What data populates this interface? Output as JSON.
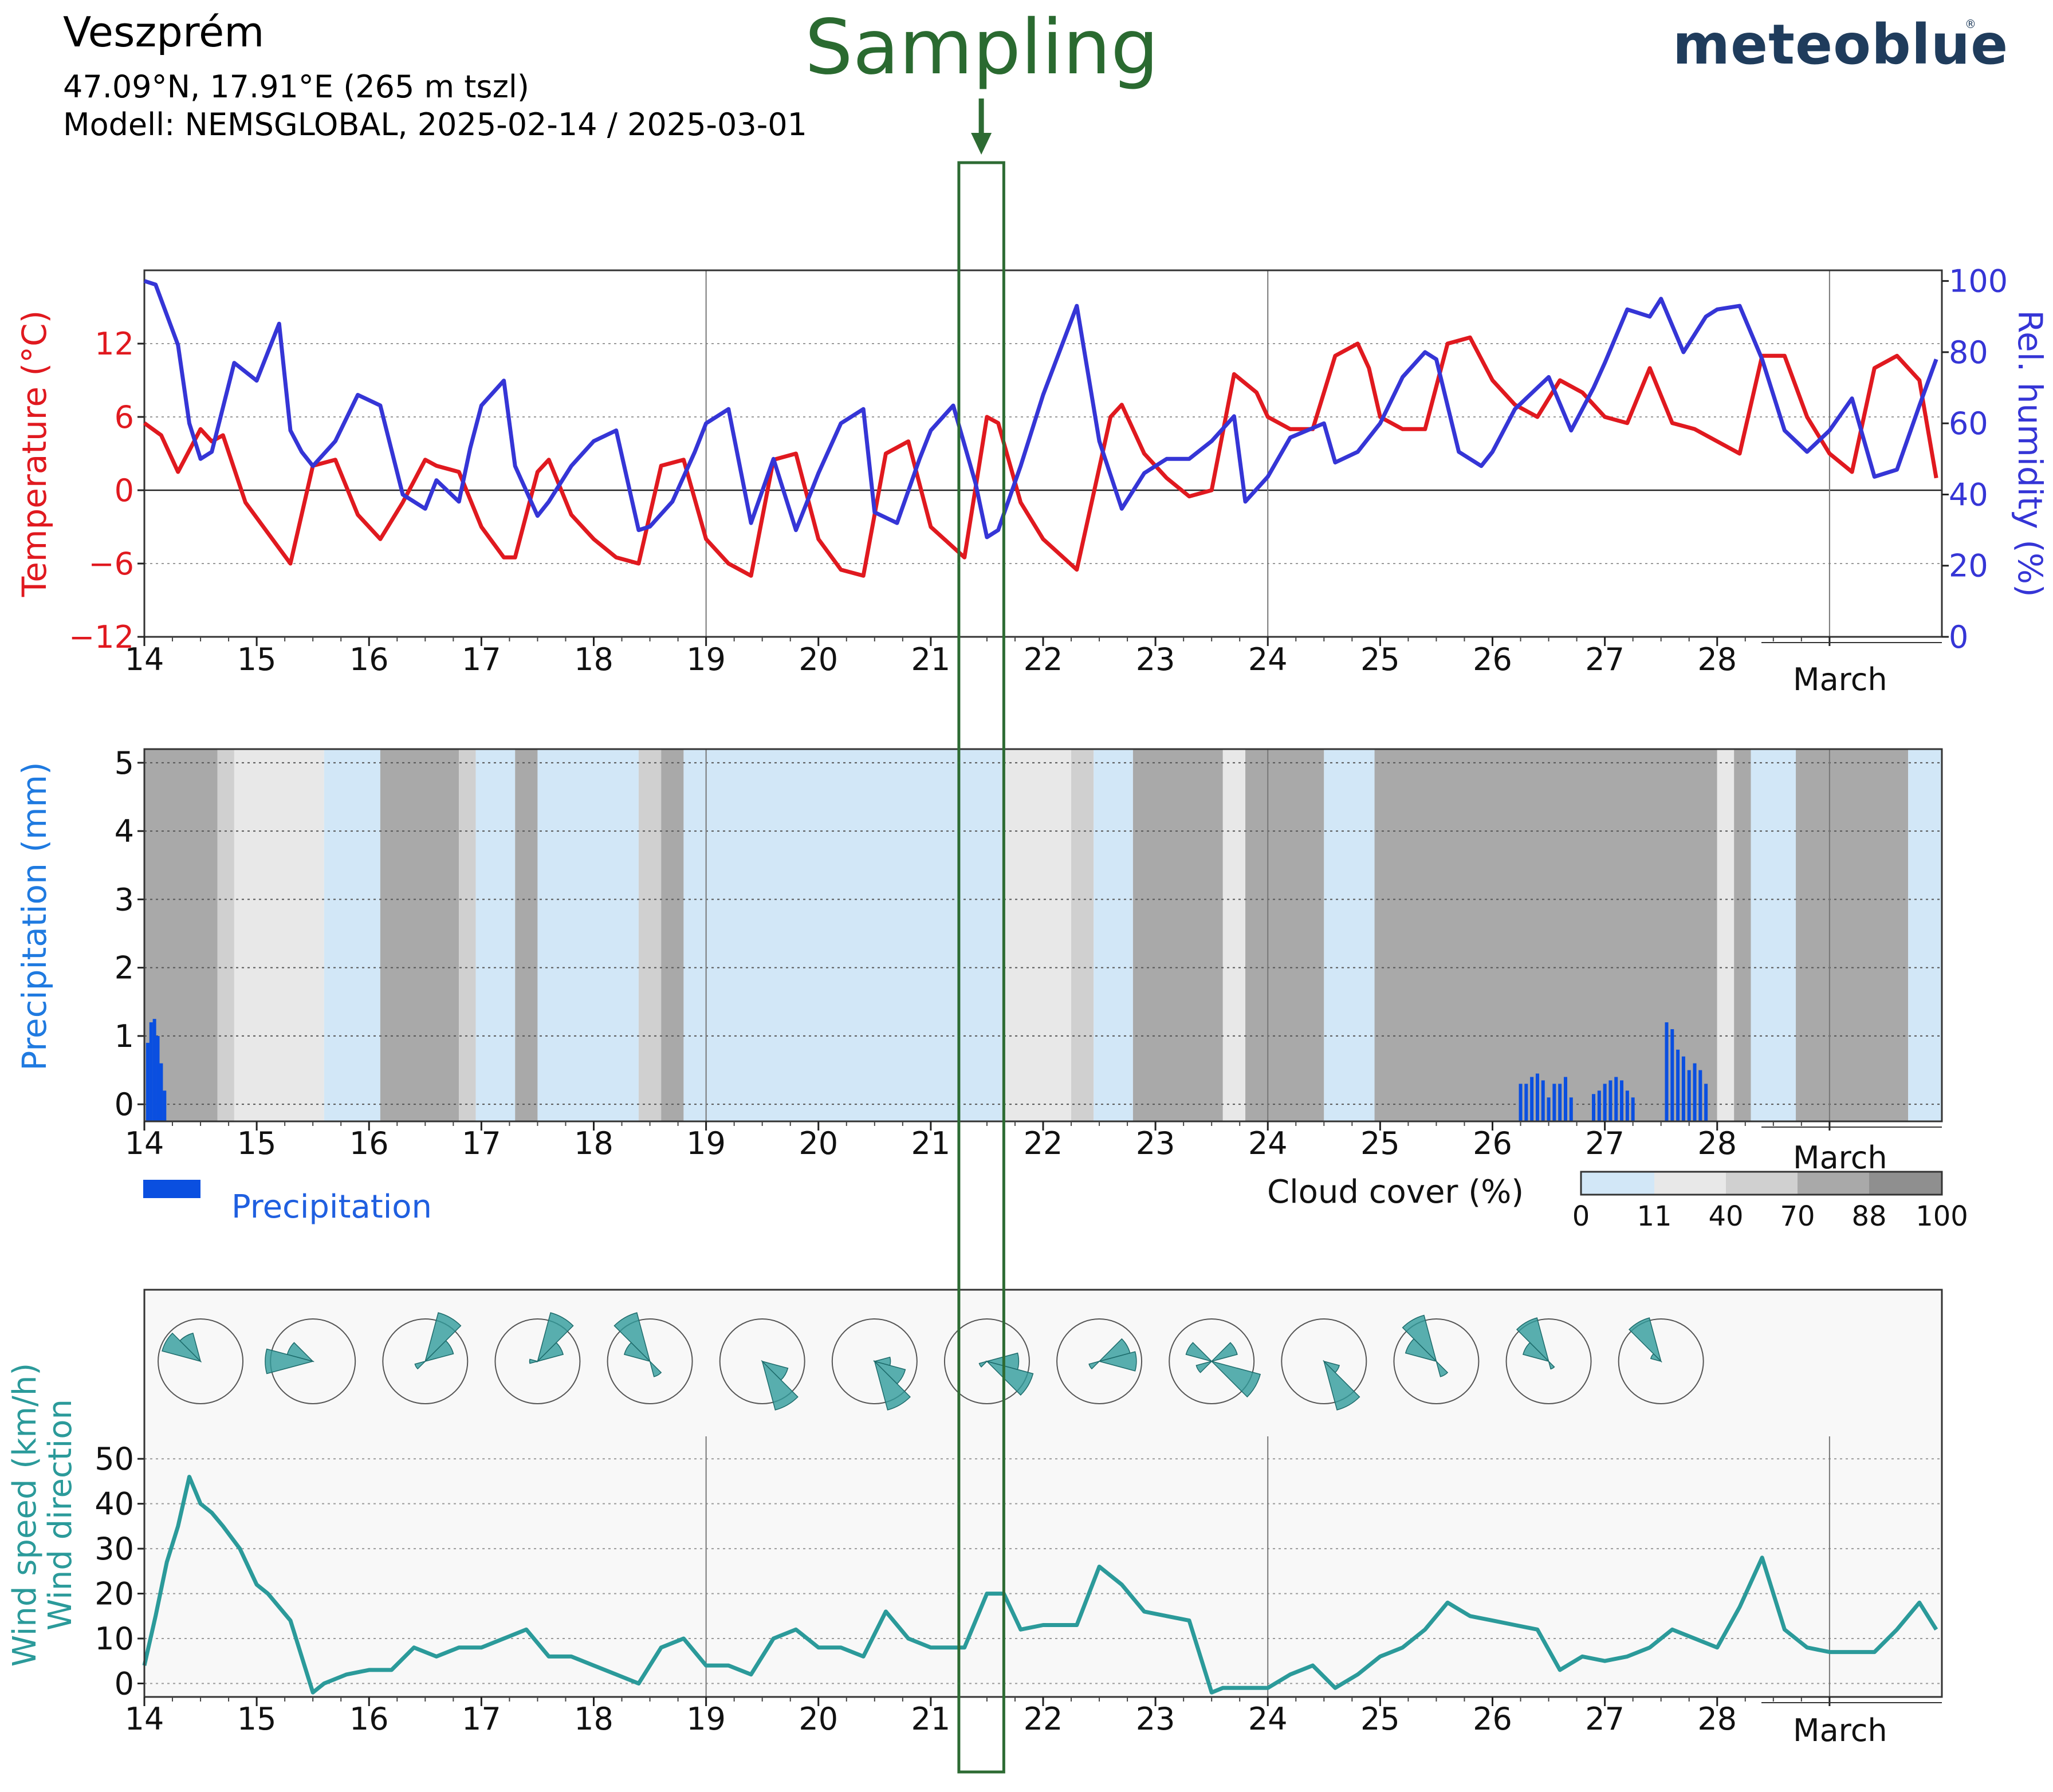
{
  "header": {
    "city": "Veszprém",
    "coords": "47.09°N, 17.91°E (265 m tszl)",
    "model": "Modell: NEMSGLOBAL, 2025-02-14 / 2025-03-01",
    "brand": "meteoblue",
    "brand_mark": "®"
  },
  "annotation": {
    "label": "Sampling",
    "arrow_icon": "down-arrow-icon",
    "day_range": [
      21.25,
      21.65
    ],
    "color": "#2d6b33"
  },
  "x_axis": {
    "ticks": [
      "14",
      "15",
      "16",
      "17",
      "18",
      "19",
      "20",
      "21",
      "22",
      "23",
      "24",
      "25",
      "26",
      "27",
      "28"
    ],
    "month_label": "March"
  },
  "colors": {
    "temperature": "#e0191f",
    "humidity": "#3535d6",
    "precipitation": "#0a4fe0",
    "wind": "#2b9a9a",
    "rose_fill": "#2f9b9b"
  },
  "chart_data": [
    {
      "type": "line",
      "title": "",
      "xlabel": "",
      "ylabel": "Temperature (°C)",
      "y2label": "Rel. humidity (%)",
      "xlim": [
        14,
        30
      ],
      "ylim": [
        -12,
        18
      ],
      "y2lim": [
        0,
        103
      ],
      "yticks": [
        "12",
        "6",
        "0",
        "−6",
        "−12"
      ],
      "y2ticks": [
        "100",
        "80",
        "60",
        "40",
        "20",
        "0"
      ],
      "grid": true,
      "series": [
        {
          "name": "Temperature (°C)",
          "x": [
            14.0,
            14.15,
            14.3,
            14.5,
            14.6,
            14.7,
            14.9,
            15.1,
            15.3,
            15.5,
            15.7,
            15.9,
            16.1,
            16.3,
            16.5,
            16.6,
            16.8,
            17.0,
            17.2,
            17.3,
            17.5,
            17.6,
            17.8,
            18.0,
            18.2,
            18.4,
            18.6,
            18.8,
            19.0,
            19.2,
            19.4,
            19.6,
            19.8,
            20.0,
            20.2,
            20.4,
            20.6,
            20.8,
            21.0,
            21.3,
            21.5,
            21.6,
            21.8,
            22.0,
            22.3,
            22.6,
            22.7,
            22.9,
            23.1,
            23.3,
            23.5,
            23.7,
            23.9,
            24.0,
            24.2,
            24.4,
            24.6,
            24.8,
            24.9,
            25.0,
            25.2,
            25.4,
            25.6,
            25.8,
            26.0,
            26.2,
            26.4,
            26.6,
            26.8,
            27.0,
            27.2,
            27.4,
            27.6,
            27.8,
            28.0,
            28.2,
            28.4,
            28.6,
            28.8,
            29.0,
            29.2,
            29.4,
            29.6,
            29.8,
            29.95
          ],
          "values": [
            5.5,
            4.5,
            1.5,
            5,
            4,
            4.5,
            -1,
            -3.5,
            -6,
            2,
            2.5,
            -2,
            -4,
            -1,
            2.5,
            2,
            1.5,
            -3,
            -5.5,
            -5.5,
            1.5,
            2.5,
            -2,
            -4,
            -5.5,
            -6,
            2,
            2.5,
            -4,
            -6,
            -7,
            2.5,
            3,
            -4,
            -6.5,
            -7,
            3,
            4,
            -3,
            -5.5,
            6,
            5.5,
            -1,
            -4,
            -6.5,
            6,
            7,
            3,
            1,
            -0.5,
            0,
            9.5,
            8,
            6,
            5,
            5,
            11,
            12,
            10,
            6,
            5,
            5,
            12,
            12.5,
            9,
            7,
            6,
            9,
            8,
            6,
            5.5,
            10,
            5.5,
            5,
            4,
            3,
            11,
            11,
            6,
            3,
            1.5,
            10,
            11,
            9,
            1
          ]
        },
        {
          "name": "Rel. humidity (%)",
          "x": [
            14.0,
            14.1,
            14.3,
            14.4,
            14.5,
            14.6,
            14.8,
            15.0,
            15.2,
            15.3,
            15.4,
            15.5,
            15.7,
            15.9,
            16.1,
            16.3,
            16.5,
            16.6,
            16.8,
            16.9,
            17.0,
            17.2,
            17.3,
            17.5,
            17.6,
            17.8,
            18.0,
            18.2,
            18.4,
            18.5,
            18.7,
            18.9,
            19.0,
            19.2,
            19.4,
            19.6,
            19.8,
            20.0,
            20.2,
            20.4,
            20.5,
            20.7,
            20.9,
            21.0,
            21.2,
            21.4,
            21.5,
            21.6,
            21.8,
            22.0,
            22.3,
            22.5,
            22.7,
            22.9,
            23.1,
            23.3,
            23.5,
            23.7,
            23.8,
            24.0,
            24.2,
            24.5,
            24.6,
            24.8,
            25.0,
            25.2,
            25.4,
            25.5,
            25.7,
            25.9,
            26.0,
            26.2,
            26.4,
            26.5,
            26.7,
            26.9,
            27.0,
            27.2,
            27.4,
            27.5,
            27.7,
            27.9,
            28.0,
            28.2,
            28.4,
            28.6,
            28.8,
            29.0,
            29.2,
            29.4,
            29.6,
            29.8,
            29.95
          ],
          "values": [
            100,
            99,
            82,
            60,
            50,
            52,
            77,
            72,
            88,
            58,
            52,
            48,
            55,
            68,
            65,
            40,
            36,
            44,
            38,
            53,
            65,
            72,
            48,
            34,
            38,
            48,
            55,
            58,
            30,
            31,
            38,
            52,
            60,
            64,
            32,
            50,
            30,
            46,
            60,
            64,
            35,
            32,
            50,
            58,
            65,
            43,
            28,
            30,
            48,
            68,
            93,
            55,
            36,
            46,
            50,
            50,
            55,
            62,
            38,
            45,
            56,
            60,
            49,
            52,
            60,
            73,
            80,
            78,
            52,
            48,
            52,
            64,
            70,
            73,
            58,
            70,
            77,
            92,
            90,
            95,
            80,
            90,
            92,
            93,
            78,
            58,
            52,
            58,
            67,
            45,
            47,
            65,
            78
          ]
        }
      ]
    },
    {
      "type": "bar",
      "title": "",
      "xlabel": "",
      "ylabel": "Precipitation (mm)",
      "xlim": [
        14,
        30
      ],
      "ylim": [
        -0.25,
        5.2
      ],
      "yticks": [
        "5",
        "4",
        "3",
        "2",
        "1",
        "0"
      ],
      "grid": true,
      "legend": {
        "precip_label": "Precipitation",
        "cloud_label": "Cloud cover (%)",
        "cloud_ticks": [
          "0",
          "11",
          "40",
          "70",
          "88",
          "100"
        ]
      },
      "series": [
        {
          "name": "Precipitation",
          "x": [
            14.03,
            14.06,
            14.09,
            14.12,
            14.15,
            14.18,
            26.25,
            26.3,
            26.35,
            26.4,
            26.45,
            26.5,
            26.55,
            26.6,
            26.65,
            26.7,
            26.9,
            26.95,
            27.0,
            27.05,
            27.1,
            27.15,
            27.2,
            27.25,
            27.55,
            27.6,
            27.65,
            27.7,
            27.75,
            27.8,
            27.85,
            27.9
          ],
          "values": [
            0.9,
            1.2,
            1.25,
            1.0,
            0.6,
            0.2,
            0.3,
            0.3,
            0.4,
            0.45,
            0.35,
            0.1,
            0.3,
            0.3,
            0.4,
            0.1,
            0.15,
            0.2,
            0.3,
            0.35,
            0.4,
            0.35,
            0.2,
            0.1,
            1.2,
            1.1,
            0.8,
            0.7,
            0.5,
            0.6,
            0.5,
            0.3
          ]
        }
      ],
      "cloud_cover": [
        {
          "from": 14.0,
          "to": 14.65,
          "percent": 88
        },
        {
          "from": 14.65,
          "to": 14.8,
          "percent": 70
        },
        {
          "from": 14.8,
          "to": 15.6,
          "percent": 40
        },
        {
          "from": 15.6,
          "to": 16.1,
          "percent": 11
        },
        {
          "from": 16.1,
          "to": 16.8,
          "percent": 88
        },
        {
          "from": 16.8,
          "to": 16.95,
          "percent": 70
        },
        {
          "from": 16.95,
          "to": 17.3,
          "percent": 11
        },
        {
          "from": 17.3,
          "to": 17.5,
          "percent": 88
        },
        {
          "from": 17.5,
          "to": 18.4,
          "percent": 11
        },
        {
          "from": 18.4,
          "to": 18.6,
          "percent": 70
        },
        {
          "from": 18.6,
          "to": 18.8,
          "percent": 88
        },
        {
          "from": 18.8,
          "to": 21.65,
          "percent": 11
        },
        {
          "from": 21.65,
          "to": 22.25,
          "percent": 40
        },
        {
          "from": 22.25,
          "to": 22.45,
          "percent": 70
        },
        {
          "from": 22.45,
          "to": 22.8,
          "percent": 11
        },
        {
          "from": 22.8,
          "to": 23.6,
          "percent": 88
        },
        {
          "from": 23.6,
          "to": 23.8,
          "percent": 40
        },
        {
          "from": 23.8,
          "to": 24.5,
          "percent": 88
        },
        {
          "from": 24.5,
          "to": 24.95,
          "percent": 11
        },
        {
          "from": 24.95,
          "to": 28.0,
          "percent": 88
        },
        {
          "from": 28.0,
          "to": 28.15,
          "percent": 40
        },
        {
          "from": 28.15,
          "to": 28.3,
          "percent": 88
        },
        {
          "from": 28.3,
          "to": 28.7,
          "percent": 11
        },
        {
          "from": 28.7,
          "to": 29.7,
          "percent": 88
        },
        {
          "from": 29.7,
          "to": 30.0,
          "percent": 11
        }
      ]
    },
    {
      "type": "line",
      "title": "",
      "xlabel": "",
      "ylabel": "Wind speed (km/h)",
      "ylabel2": "Wind direction",
      "xlim": [
        14,
        30
      ],
      "ylim": [
        -3,
        55
      ],
      "yticks": [
        "50",
        "40",
        "30",
        "20",
        "10",
        "0"
      ],
      "grid": true,
      "series": [
        {
          "name": "Wind speed (km/h)",
          "x": [
            14.0,
            14.1,
            14.2,
            14.3,
            14.4,
            14.5,
            14.6,
            14.7,
            14.85,
            15.0,
            15.1,
            15.3,
            15.5,
            15.6,
            15.8,
            16.0,
            16.2,
            16.4,
            16.6,
            16.8,
            17.0,
            17.2,
            17.4,
            17.6,
            17.8,
            18.0,
            18.2,
            18.4,
            18.6,
            18.8,
            19.0,
            19.2,
            19.4,
            19.6,
            19.8,
            20.0,
            20.2,
            20.4,
            20.6,
            20.8,
            21.0,
            21.3,
            21.5,
            21.65,
            21.8,
            22.0,
            22.3,
            22.5,
            22.7,
            22.9,
            23.1,
            23.3,
            23.5,
            23.6,
            23.8,
            24.0,
            24.2,
            24.4,
            24.6,
            24.8,
            25.0,
            25.2,
            25.4,
            25.6,
            25.8,
            26.0,
            26.2,
            26.4,
            26.6,
            26.8,
            27.0,
            27.2,
            27.4,
            27.6,
            27.8,
            28.0,
            28.2,
            28.4,
            28.6,
            28.8,
            29.0,
            29.2,
            29.4,
            29.6,
            29.8,
            29.95
          ],
          "values": [
            4,
            15,
            27,
            35,
            46,
            40,
            38,
            35,
            30,
            22,
            20,
            14,
            -2,
            0,
            2,
            3,
            3,
            8,
            6,
            8,
            8,
            10,
            12,
            6,
            6,
            4,
            2,
            0,
            8,
            10,
            4,
            4,
            2,
            10,
            12,
            8,
            8,
            6,
            16,
            10,
            8,
            8,
            20,
            20,
            12,
            13,
            13,
            26,
            22,
            16,
            15,
            14,
            -2,
            -1,
            -1,
            -1,
            2,
            4,
            -1,
            2,
            6,
            8,
            12,
            18,
            15,
            14,
            13,
            12,
            3,
            6,
            5,
            6,
            8,
            12,
            10,
            8,
            17,
            28,
            12,
            8,
            7,
            7,
            7,
            12,
            18,
            12
          ]
        }
      ],
      "wind_roses": [
        {
          "day": 14.5,
          "sectors": [
            {
              "dir": 300,
              "len": 0.75
            },
            {
              "dir": 330,
              "len": 0.55
            }
          ]
        },
        {
          "day": 15.5,
          "sectors": [
            {
              "dir": 270,
              "len": 0.9
            },
            {
              "dir": 300,
              "len": 0.5
            }
          ]
        },
        {
          "day": 16.5,
          "sectors": [
            {
              "dir": 30,
              "len": 0.95
            },
            {
              "dir": 60,
              "len": 0.55
            },
            {
              "dir": 240,
              "len": 0.2
            }
          ]
        },
        {
          "day": 17.5,
          "sectors": [
            {
              "dir": 30,
              "len": 0.95
            },
            {
              "dir": 60,
              "len": 0.5
            },
            {
              "dir": 270,
              "len": 0.15
            }
          ]
        },
        {
          "day": 18.5,
          "sectors": [
            {
              "dir": 330,
              "len": 0.95
            },
            {
              "dir": 300,
              "len": 0.5
            },
            {
              "dir": 150,
              "len": 0.3
            }
          ]
        },
        {
          "day": 19.5,
          "sectors": [
            {
              "dir": 150,
              "len": 0.95
            },
            {
              "dir": 120,
              "len": 0.5
            }
          ]
        },
        {
          "day": 20.5,
          "sectors": [
            {
              "dir": 150,
              "len": 0.95
            },
            {
              "dir": 120,
              "len": 0.6
            },
            {
              "dir": 90,
              "len": 0.3
            }
          ]
        },
        {
          "day": 21.5,
          "sectors": [
            {
              "dir": 120,
              "len": 0.9
            },
            {
              "dir": 90,
              "len": 0.6
            },
            {
              "dir": 240,
              "len": 0.15
            }
          ]
        },
        {
          "day": 22.5,
          "sectors": [
            {
              "dir": 90,
              "len": 0.7
            },
            {
              "dir": 60,
              "len": 0.6
            },
            {
              "dir": 240,
              "len": 0.2
            }
          ]
        },
        {
          "day": 23.5,
          "sectors": [
            {
              "dir": 120,
              "len": 0.95
            },
            {
              "dir": 300,
              "len": 0.5
            },
            {
              "dir": 60,
              "len": 0.5
            },
            {
              "dir": 240,
              "len": 0.3
            }
          ]
        },
        {
          "day": 24.5,
          "sectors": [
            {
              "dir": 150,
              "len": 0.95
            },
            {
              "dir": 120,
              "len": 0.3
            }
          ]
        },
        {
          "day": 25.5,
          "sectors": [
            {
              "dir": 330,
              "len": 0.9
            },
            {
              "dir": 300,
              "len": 0.6
            },
            {
              "dir": 150,
              "len": 0.3
            }
          ]
        },
        {
          "day": 26.5,
          "sectors": [
            {
              "dir": 330,
              "len": 0.85
            },
            {
              "dir": 300,
              "len": 0.5
            },
            {
              "dir": 150,
              "len": 0.15
            }
          ]
        },
        {
          "day": 27.5,
          "sectors": [
            {
              "dir": 330,
              "len": 0.85
            },
            {
              "dir": 300,
              "len": 0.2
            }
          ]
        }
      ]
    }
  ]
}
